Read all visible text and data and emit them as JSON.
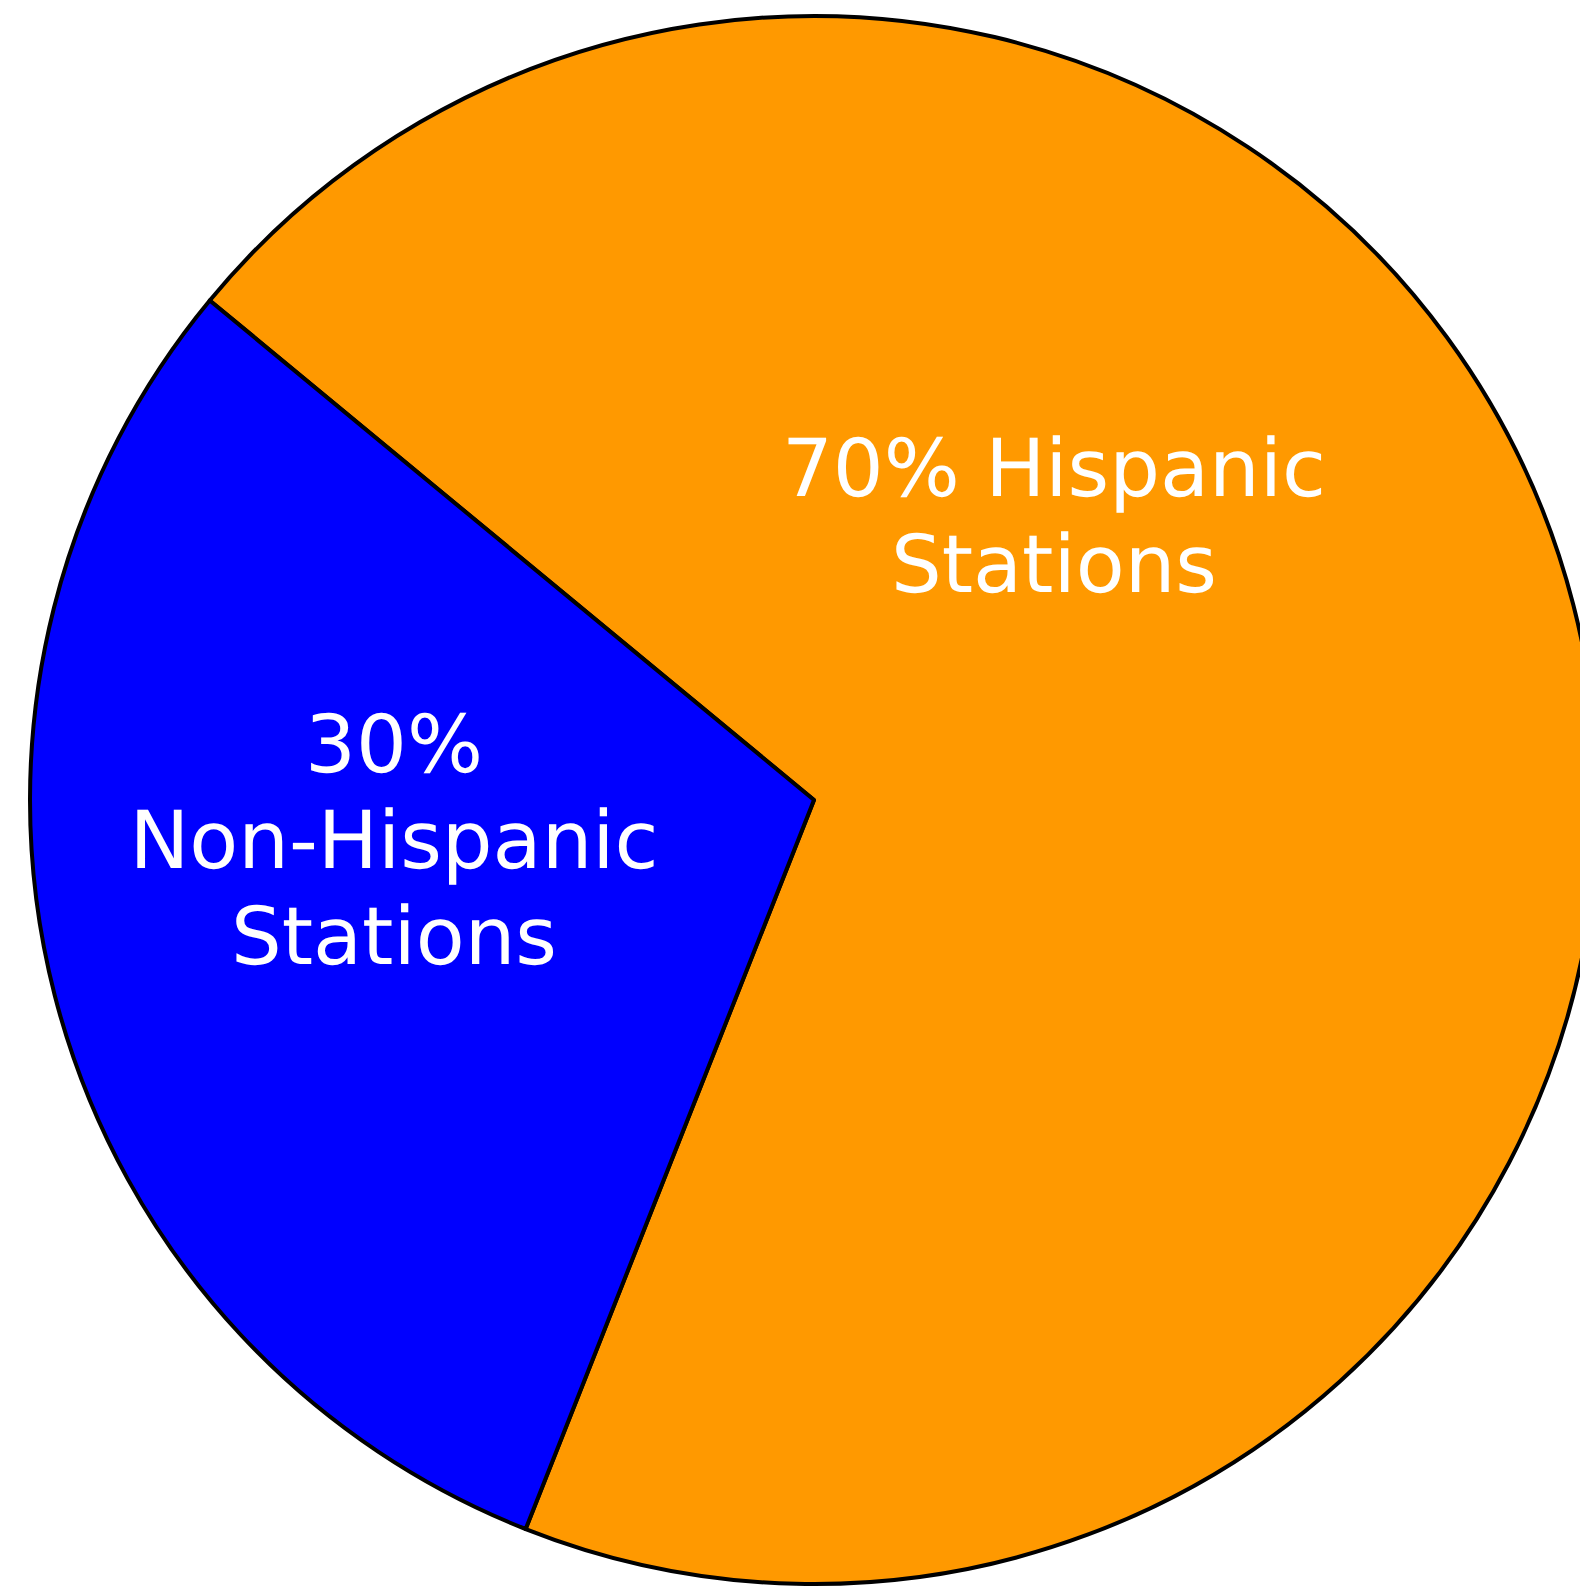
{
  "chart_data": {
    "type": "pie",
    "categories": [
      "Hispanic Stations",
      "Non-Hispanic Stations"
    ],
    "values": [
      70,
      30
    ],
    "colors": [
      "#ff9900",
      "#0000ff"
    ],
    "value_labels": [
      "70%",
      "30%"
    ]
  }
}
